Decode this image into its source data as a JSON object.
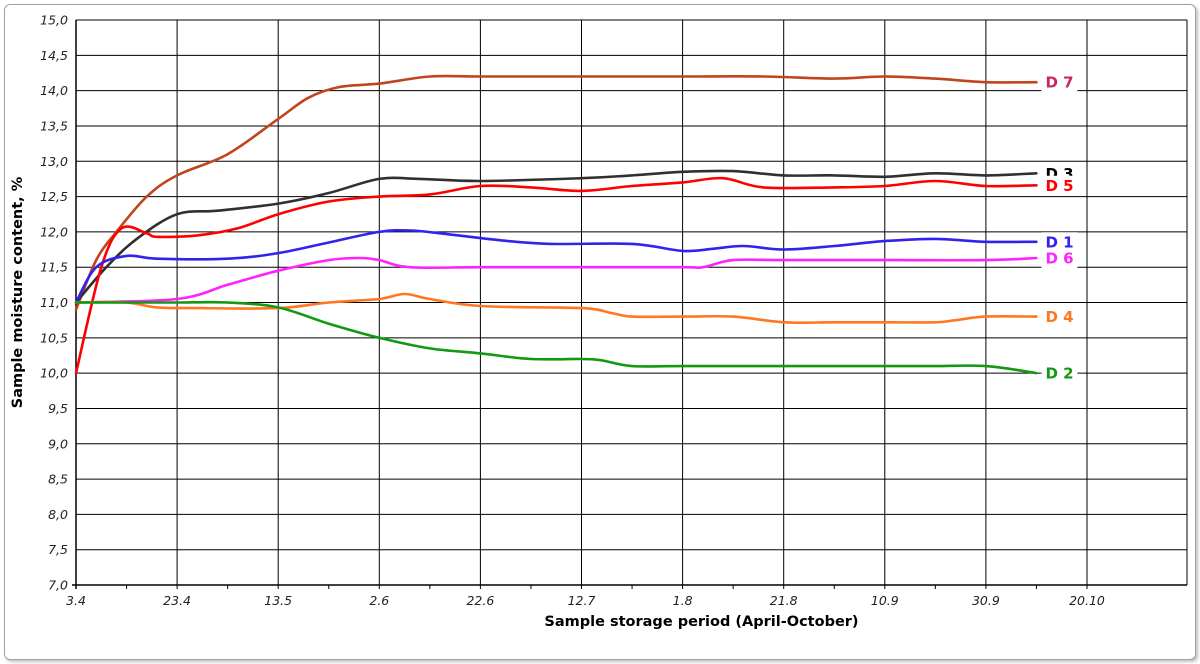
{
  "chart_data": {
    "type": "line",
    "title": "",
    "xlabel": "Sample storage period (April-October)",
    "ylabel": "Sample moisture content, %",
    "x_ticks": [
      "3.4",
      "23.4",
      "13.5",
      "2.6",
      "22.6",
      "12.7",
      "1.8",
      "21.8",
      "10.9",
      "30.9",
      "20.10"
    ],
    "y_ticks": [
      "7,0",
      "7,5",
      "8,0",
      "8,5",
      "9,0",
      "9,5",
      "10,0",
      "10,5",
      "11,0",
      "11,5",
      "12,0",
      "12,5",
      "13,0",
      "13,5",
      "14,0",
      "14,5",
      "15,0"
    ],
    "ylim": [
      7.0,
      15.0
    ],
    "grid": true,
    "x_units": "tick intervals (0 = 3.4, 10 = 20.10)",
    "legend": "labels at line ends",
    "series": [
      {
        "name": "D 7",
        "color": "#c0441c",
        "label_color": "#cc2266",
        "points": [
          [
            0,
            10.9
          ],
          [
            0.2,
            11.6
          ],
          [
            0.4,
            12.0
          ],
          [
            0.7,
            12.5
          ],
          [
            1.0,
            12.8
          ],
          [
            1.5,
            13.1
          ],
          [
            2.0,
            13.6
          ],
          [
            2.3,
            13.9
          ],
          [
            2.6,
            14.05
          ],
          [
            3.0,
            14.1
          ],
          [
            3.5,
            14.2
          ],
          [
            4.0,
            14.2
          ],
          [
            5.0,
            14.2
          ],
          [
            6.0,
            14.2
          ],
          [
            6.8,
            14.2
          ],
          [
            7.5,
            14.17
          ],
          [
            8.0,
            14.2
          ],
          [
            8.5,
            14.17
          ],
          [
            9.0,
            14.12
          ],
          [
            9.5,
            14.12
          ]
        ]
      },
      {
        "name": "D 3",
        "color": "#303030",
        "label_color": "#000000",
        "points": [
          [
            0,
            11.0
          ],
          [
            0.3,
            11.5
          ],
          [
            0.6,
            11.9
          ],
          [
            1.0,
            12.25
          ],
          [
            1.4,
            12.3
          ],
          [
            2.0,
            12.4
          ],
          [
            2.5,
            12.55
          ],
          [
            3.0,
            12.75
          ],
          [
            3.4,
            12.75
          ],
          [
            4.0,
            12.72
          ],
          [
            5.0,
            12.76
          ],
          [
            5.5,
            12.8
          ],
          [
            6.0,
            12.85
          ],
          [
            6.5,
            12.86
          ],
          [
            7.0,
            12.8
          ],
          [
            7.5,
            12.8
          ],
          [
            8.0,
            12.78
          ],
          [
            8.5,
            12.83
          ],
          [
            9.0,
            12.8
          ],
          [
            9.5,
            12.83
          ]
        ]
      },
      {
        "name": "D 5",
        "color": "#ff0000",
        "label_color": "#ff0000",
        "points": [
          [
            0,
            10.0
          ],
          [
            0.25,
            11.5
          ],
          [
            0.45,
            12.05
          ],
          [
            0.7,
            11.98
          ],
          [
            0.8,
            11.93
          ],
          [
            1.2,
            11.95
          ],
          [
            1.6,
            12.05
          ],
          [
            2.0,
            12.25
          ],
          [
            2.5,
            12.43
          ],
          [
            3.0,
            12.5
          ],
          [
            3.5,
            12.53
          ],
          [
            4.0,
            12.65
          ],
          [
            4.5,
            12.63
          ],
          [
            5.0,
            12.58
          ],
          [
            5.5,
            12.65
          ],
          [
            6.0,
            12.7
          ],
          [
            6.4,
            12.76
          ],
          [
            6.8,
            12.63
          ],
          [
            7.5,
            12.63
          ],
          [
            8.0,
            12.65
          ],
          [
            8.5,
            12.72
          ],
          [
            9.0,
            12.65
          ],
          [
            9.5,
            12.66
          ]
        ]
      },
      {
        "name": "D 1",
        "color": "#3322ee",
        "label_color": "#3322ee",
        "points": [
          [
            0,
            11.0
          ],
          [
            0.2,
            11.5
          ],
          [
            0.5,
            11.66
          ],
          [
            0.8,
            11.62
          ],
          [
            1.5,
            11.62
          ],
          [
            2.0,
            11.7
          ],
          [
            2.5,
            11.85
          ],
          [
            3.0,
            12.0
          ],
          [
            3.3,
            12.02
          ],
          [
            3.6,
            11.98
          ],
          [
            4.2,
            11.88
          ],
          [
            4.7,
            11.83
          ],
          [
            5.5,
            11.83
          ],
          [
            6.0,
            11.73
          ],
          [
            6.3,
            11.76
          ],
          [
            6.6,
            11.8
          ],
          [
            7.0,
            11.75
          ],
          [
            7.5,
            11.8
          ],
          [
            8.0,
            11.87
          ],
          [
            8.5,
            11.9
          ],
          [
            9.0,
            11.86
          ],
          [
            9.5,
            11.86
          ]
        ]
      },
      {
        "name": "D 6",
        "color": "#ff22ff",
        "label_color": "#ff22ff",
        "points": [
          [
            0,
            11.0
          ],
          [
            1.0,
            11.05
          ],
          [
            1.5,
            11.25
          ],
          [
            2.0,
            11.45
          ],
          [
            2.5,
            11.6
          ],
          [
            2.8,
            11.63
          ],
          [
            3.0,
            11.6
          ],
          [
            3.3,
            11.5
          ],
          [
            4.0,
            11.5
          ],
          [
            5.0,
            11.5
          ],
          [
            6.0,
            11.5
          ],
          [
            6.2,
            11.5
          ],
          [
            6.5,
            11.6
          ],
          [
            7.0,
            11.6
          ],
          [
            8.0,
            11.6
          ],
          [
            9.0,
            11.6
          ],
          [
            9.5,
            11.63
          ]
        ]
      },
      {
        "name": "D 4",
        "color": "#ff7722",
        "label_color": "#ff7722",
        "points": [
          [
            0,
            11.0
          ],
          [
            0.5,
            11.0
          ],
          [
            0.8,
            10.93
          ],
          [
            1.2,
            10.92
          ],
          [
            2.0,
            10.92
          ],
          [
            2.5,
            11.0
          ],
          [
            3.0,
            11.05
          ],
          [
            3.25,
            11.12
          ],
          [
            3.5,
            11.05
          ],
          [
            4.0,
            10.95
          ],
          [
            5.0,
            10.92
          ],
          [
            5.3,
            10.85
          ],
          [
            5.5,
            10.8
          ],
          [
            6.0,
            10.8
          ],
          [
            6.5,
            10.8
          ],
          [
            7.0,
            10.72
          ],
          [
            7.5,
            10.72
          ],
          [
            8.0,
            10.72
          ],
          [
            8.5,
            10.72
          ],
          [
            8.7,
            10.75
          ],
          [
            9.0,
            10.8
          ],
          [
            9.5,
            10.8
          ]
        ]
      },
      {
        "name": "D 2",
        "color": "#119911",
        "label_color": "#119911",
        "points": [
          [
            0,
            11.0
          ],
          [
            0.5,
            11.0
          ],
          [
            1.0,
            11.0
          ],
          [
            1.5,
            11.0
          ],
          [
            2.0,
            10.93
          ],
          [
            2.5,
            10.7
          ],
          [
            3.0,
            10.5
          ],
          [
            3.5,
            10.35
          ],
          [
            4.0,
            10.28
          ],
          [
            4.5,
            10.2
          ],
          [
            5.0,
            10.2
          ],
          [
            5.2,
            10.18
          ],
          [
            5.5,
            10.1
          ],
          [
            6.0,
            10.1
          ],
          [
            7.0,
            10.1
          ],
          [
            8.0,
            10.1
          ],
          [
            8.5,
            10.1
          ],
          [
            9.0,
            10.1
          ],
          [
            9.5,
            10.0
          ]
        ]
      }
    ]
  }
}
